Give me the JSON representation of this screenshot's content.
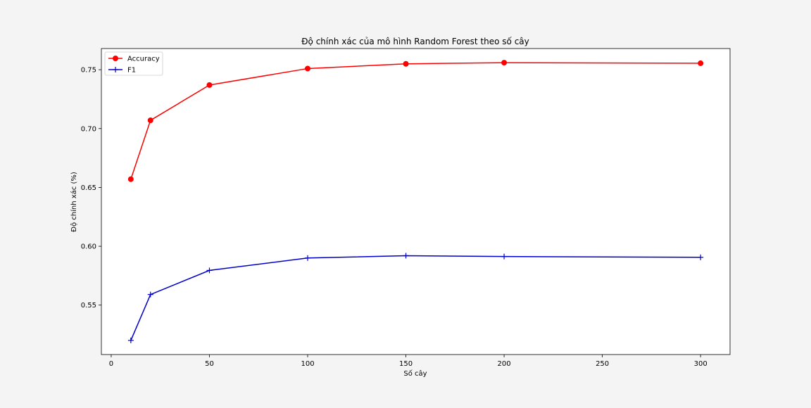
{
  "chart_data": {
    "type": "line",
    "title": "Độ chính xác của mô hình Random Forest theo số cây",
    "xlabel": "Số cây",
    "ylabel": "Độ chính xác (%)",
    "x": [
      10,
      20,
      50,
      100,
      150,
      200,
      300
    ],
    "xlim": [
      -5,
      315
    ],
    "ylim": [
      0.508,
      0.768
    ],
    "xticks": [
      0,
      50,
      100,
      150,
      200,
      250,
      300
    ],
    "yticks": [
      0.55,
      0.6,
      0.65,
      0.7,
      0.75
    ],
    "xtick_labels": [
      "0",
      "50",
      "100",
      "150",
      "200",
      "250",
      "300"
    ],
    "ytick_labels": [
      "0.55",
      "0.60",
      "0.65",
      "0.70",
      "0.75"
    ],
    "series": [
      {
        "name": "Accuracy",
        "color": "#ff0000",
        "marker": "circle",
        "values": [
          0.657,
          0.707,
          0.737,
          0.751,
          0.755,
          0.756,
          0.7555
        ]
      },
      {
        "name": "F1",
        "color": "#0000cc",
        "marker": "plus",
        "values": [
          0.52,
          0.559,
          0.5795,
          0.59,
          0.592,
          0.5913,
          0.5906
        ]
      }
    ],
    "legend": "upper-left",
    "grid": false
  }
}
